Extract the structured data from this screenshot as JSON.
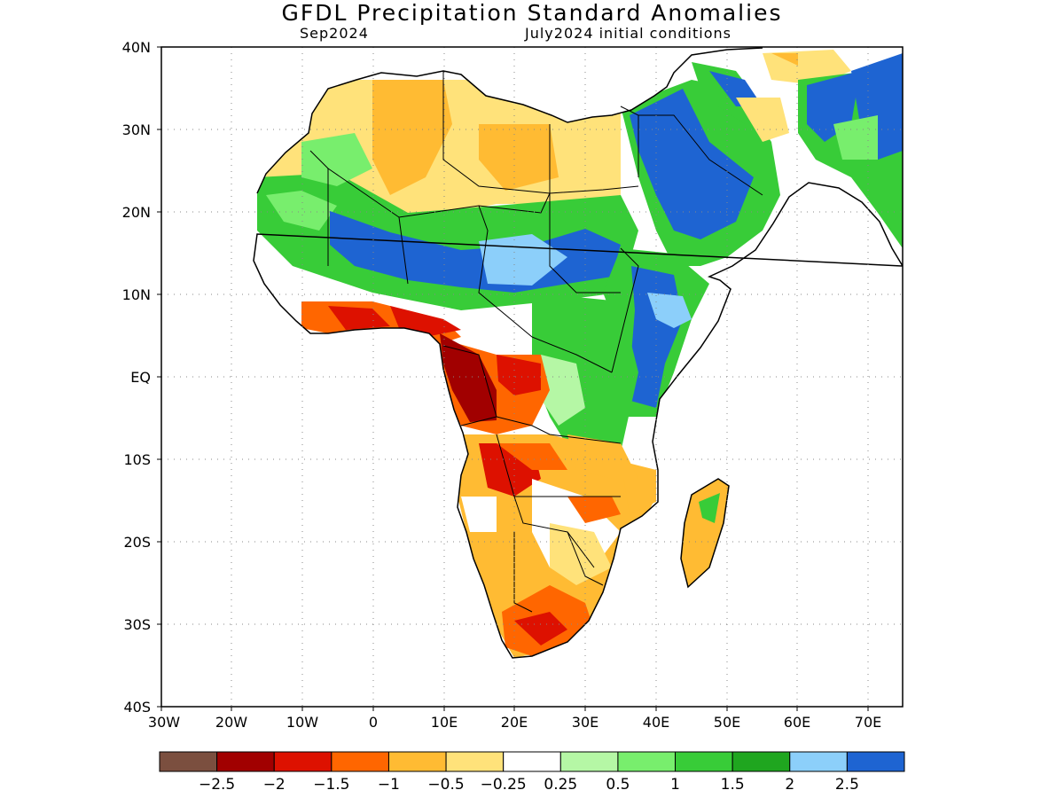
{
  "title": "GFDL Precipitation Standard Anomalies",
  "forecast_month": "Sep2024",
  "init_conditions": "July2024 initial conditions",
  "axes": {
    "y_ticks": [
      "40N",
      "30N",
      "20N",
      "10N",
      "EQ",
      "10S",
      "20S",
      "30S",
      "40S"
    ],
    "x_ticks": [
      "30W",
      "20W",
      "10W",
      "0",
      "10E",
      "20E",
      "30E",
      "40E",
      "50E",
      "60E",
      "70E"
    ]
  },
  "colorbar": {
    "colors": [
      "#7b4f3f",
      "#a10000",
      "#dd1100",
      "#ff6600",
      "#ffbb33",
      "#ffe27a",
      "#ffffff",
      "#b5f7a5",
      "#78ee6d",
      "#38cc38",
      "#1fa61f",
      "#8ccffa",
      "#1e64d2"
    ],
    "labels": [
      "-2.5",
      "-2",
      "-1.5",
      "-1",
      "-0.5",
      "-0.25",
      "0.25",
      "0.5",
      "1",
      "1.5",
      "2",
      "2.5"
    ]
  },
  "legend_semantics": {
    "dry_colors": [
      "brown",
      "dark-red",
      "red",
      "orange",
      "light-orange",
      "yellow"
    ],
    "wet_colors": [
      "light-green",
      "green",
      "medium-green",
      "dark-green",
      "light-blue",
      "blue"
    ]
  }
}
